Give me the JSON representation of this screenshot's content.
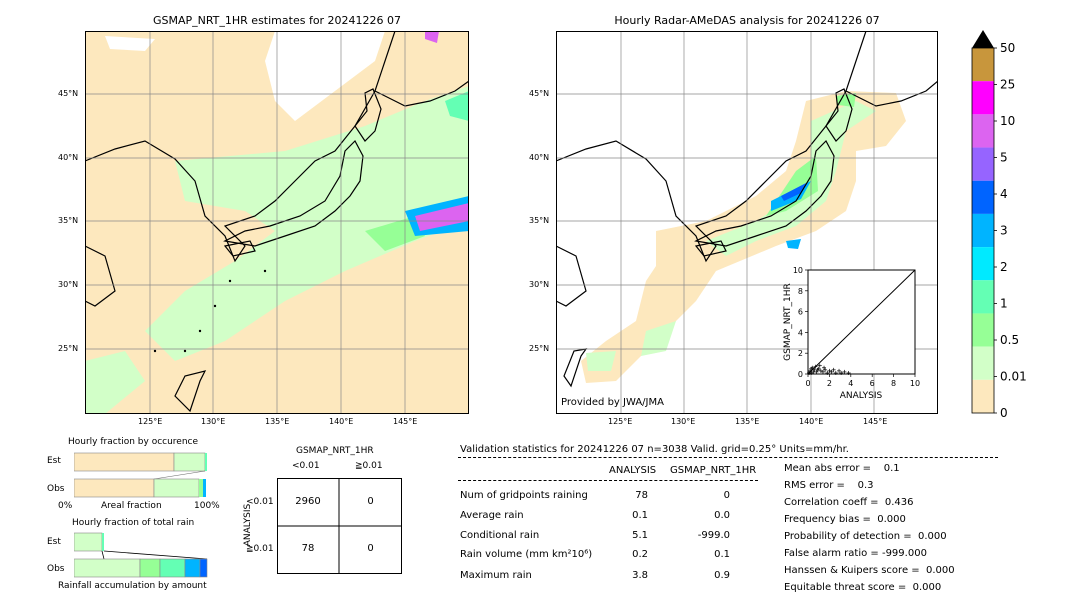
{
  "map_left": {
    "title": "GSMAP_NRT_1HR estimates for 20241226 07",
    "lat_labels": [
      "45°N",
      "40°N",
      "35°N",
      "30°N",
      "25°N"
    ],
    "lon_labels": [
      "125°E",
      "130°E",
      "135°E",
      "140°E",
      "145°E"
    ]
  },
  "map_right": {
    "title": "Hourly Radar-AMeDAS analysis for 20241226 07",
    "lat_labels": [
      "45°N",
      "40°N",
      "35°N",
      "30°N",
      "25°N"
    ],
    "lon_labels": [
      "125°E",
      "130°E",
      "135°E",
      "140°E",
      "145°E"
    ],
    "credit": "Provided by JWA/JMA"
  },
  "colorbar": {
    "labels": [
      "50",
      "25",
      "10",
      "5",
      "4",
      "3",
      "2",
      "1",
      "0.5",
      "0.01",
      "0"
    ],
    "colors": [
      "#c8963c",
      "#ff00ff",
      "#dc64f0",
      "#9664ff",
      "#0064ff",
      "#00b4ff",
      "#00eaff",
      "#64ffb4",
      "#96ff96",
      "#d2ffc8",
      "#fde8be"
    ]
  },
  "chart_data": [
    {
      "type": "scatter",
      "xlabel": "ANALYSIS",
      "ylabel": "GSMAP_NRT_1HR",
      "xlim": [
        0,
        10
      ],
      "ylim": [
        0,
        10
      ],
      "xticks": [
        "0",
        "2",
        "4",
        "6",
        "8",
        "10"
      ],
      "yticks": [
        "0",
        "2",
        "4",
        "6",
        "8",
        "10"
      ],
      "points": [
        [
          0.1,
          0.1
        ],
        [
          0.2,
          0.3
        ],
        [
          0.3,
          0.1
        ],
        [
          0.5,
          0.2
        ],
        [
          0.6,
          0.4
        ],
        [
          0.8,
          0.2
        ],
        [
          1.0,
          0.5
        ],
        [
          1.2,
          0.3
        ],
        [
          1.4,
          0.2
        ],
        [
          1.6,
          0.4
        ],
        [
          1.8,
          0.1
        ],
        [
          2.0,
          0.3
        ],
        [
          2.2,
          0.2
        ],
        [
          2.4,
          0.4
        ],
        [
          2.6,
          0.1
        ],
        [
          2.9,
          0.3
        ],
        [
          3.1,
          0.1
        ],
        [
          3.4,
          0.2
        ],
        [
          3.8,
          0.1
        ],
        [
          0.4,
          0.6
        ],
        [
          0.7,
          0.7
        ],
        [
          1.1,
          0.8
        ],
        [
          1.5,
          0.6
        ],
        [
          0.9,
          0.4
        ],
        [
          0.3,
          0.5
        ]
      ]
    },
    {
      "type": "bar",
      "title": "Hourly fraction by occurence",
      "categories": [
        "Est",
        "Obs"
      ],
      "xtick_left": "0%",
      "xtick_right": "100%",
      "xlabel": "Areal fraction"
    },
    {
      "type": "bar",
      "title": "Hourly fraction of total rain",
      "categories": [
        "Est",
        "Obs"
      ],
      "xlabel": "Rainfall accumulation by amount"
    }
  ],
  "contingency": {
    "title": "GSMAP_NRT_1HR",
    "col_labels": [
      "<0.01",
      "≧0.01"
    ],
    "row_axis": "ANALYSIS",
    "row_labels": [
      "<0.01",
      "≧0.01"
    ],
    "cells": [
      [
        "2960",
        "0"
      ],
      [
        "78",
        "0"
      ]
    ]
  },
  "validation": {
    "header": "Validation statistics for 20241226 07  n=3038 Valid. grid=0.25° Units=mm/hr.",
    "col_analysis": "ANALYSIS",
    "col_gsmap": "GSMAP_NRT_1HR",
    "rows": [
      {
        "label": "Num of gridpoints raining",
        "analysis": "78",
        "gsmap": "0"
      },
      {
        "label": "Average rain",
        "analysis": "0.1",
        "gsmap": "0.0"
      },
      {
        "label": "Conditional rain",
        "analysis": "5.1",
        "gsmap": "-999.0"
      },
      {
        "label": "Rain volume (mm km²10⁶)",
        "analysis": "0.2",
        "gsmap": "0.1"
      },
      {
        "label": "Maximum rain",
        "analysis": "3.8",
        "gsmap": "0.9"
      }
    ],
    "scores": [
      "Mean abs error =    0.1",
      "RMS error =    0.3",
      "Correlation coeff =  0.436",
      "Frequency bias =  0.000",
      "Probability of detection =  0.000",
      "False alarm ratio = -999.000",
      "Hanssen & Kuipers score =  0.000",
      "Equitable threat score =  0.000"
    ]
  }
}
